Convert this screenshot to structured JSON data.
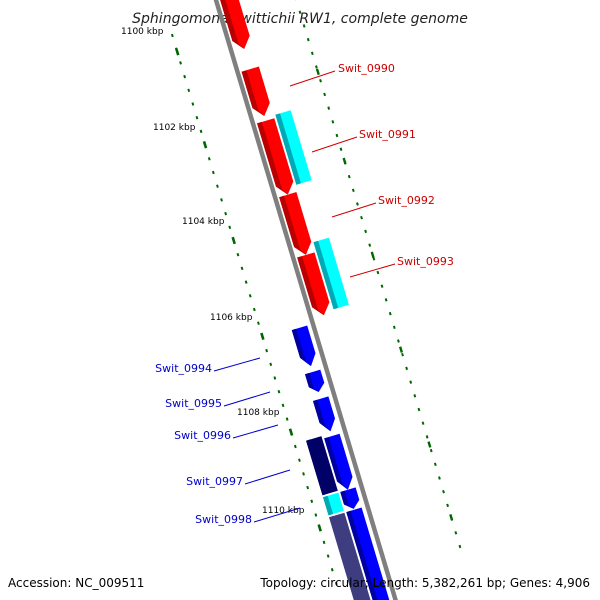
{
  "title": "Sphingomonas wittichii RW1, complete genome",
  "footer": {
    "accession": "Accession: NC_009511",
    "summary": "Topology: circular; Length: 5,382,261 bp; Genes: 4,906"
  },
  "colors": {
    "backbone": "#7f7f7f",
    "forward_red": "#ff0000",
    "forward_red_dark": "#b80000",
    "feature_cyan": "#00ffff",
    "feature_cyan_dark": "#00a9b5",
    "gene_blue": "#0000ff",
    "gene_blue_dark": "#0000a0",
    "gene_navy": "#000066",
    "gene_slate": "#3d3d80",
    "tick_green": "#006600",
    "label_red": "#cc0000",
    "label_blue": "#0000cc"
  },
  "ticks": [
    {
      "label": "1100 kbp"
    },
    {
      "label": "1102 kbp"
    },
    {
      "label": "1104 kbp"
    },
    {
      "label": "1106 kbp"
    },
    {
      "label": "1108 kbp"
    },
    {
      "label": "1110 kbp"
    }
  ],
  "gene_labels": [
    {
      "name": "Swit_0990",
      "color": "label_red"
    },
    {
      "name": "Swit_0991",
      "color": "label_red"
    },
    {
      "name": "Swit_0992",
      "color": "label_red"
    },
    {
      "name": "Swit_0993",
      "color": "label_red"
    },
    {
      "name": "Swit_0994",
      "color": "label_blue"
    },
    {
      "name": "Swit_0995",
      "color": "label_blue"
    },
    {
      "name": "Swit_0996",
      "color": "label_blue"
    },
    {
      "name": "Swit_0997",
      "color": "label_blue"
    },
    {
      "name": "Swit_0998",
      "color": "label_blue"
    }
  ]
}
